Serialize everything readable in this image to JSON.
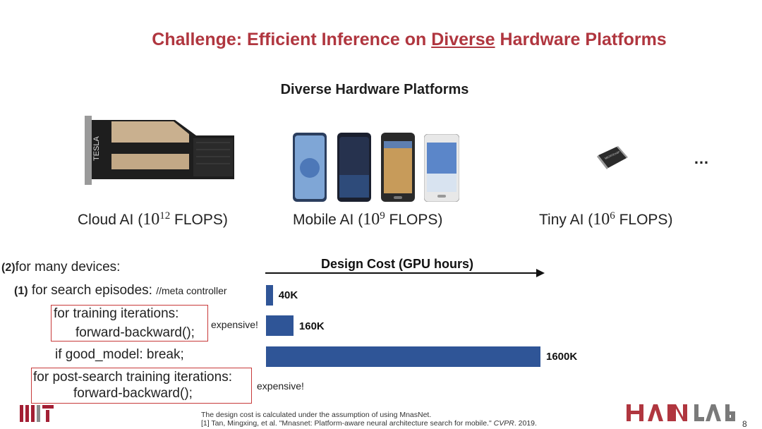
{
  "slide": {
    "title_pre": "Challenge: Efficient Inference on ",
    "title_underlined": "Diverse",
    "title_post": " Hardware Platforms",
    "subtitle": "Diverse Hardware Platforms",
    "ellipsis": "…",
    "page_number": "8"
  },
  "platforms": [
    {
      "name": "Cloud AI (",
      "base": "10",
      "exp": "12",
      "unit": " FLOPS)"
    },
    {
      "name": "Mobile AI (",
      "base": "10",
      "exp": "9",
      "unit": " FLOPS)"
    },
    {
      "name": "Tiny AI (",
      "base": "10",
      "exp": "6",
      "unit": " FLOPS)"
    }
  ],
  "gpu_logo_text": "TESLA",
  "chip_logo_text": "MICROCHIP",
  "code": {
    "line1_num": "(2)",
    "line1": "for many devices:",
    "line2_num": "(1)",
    "line2": "for search episodes:",
    "line2_comment": "//meta controller",
    "line3": "for training iterations:",
    "line4": "forward-backward();",
    "line5": "if good_model: break;",
    "line6": "for post-search training iterations:",
    "line7": "forward-backward();",
    "expensive1": "expensive!",
    "expensive2": "expensive!"
  },
  "chart_data": {
    "type": "bar",
    "title": "Design Cost (GPU hours)",
    "categories": [
      "search episodes",
      "training iterations",
      "post-search training"
    ],
    "values": [
      40,
      160,
      1600
    ],
    "labels": [
      "40K",
      "160K",
      "1600K"
    ],
    "unit": "K GPU hours"
  },
  "footnote": {
    "line1": "The design cost is calculated under the assumption of using MnasNet.",
    "line2_pre": "[1] Tan, Mingxing, et al. \"Mnasnet: Platform-aware neural architecture search for mobile.\" ",
    "line2_venue": "CVPR",
    "line2_post": ". 2019."
  },
  "logos": {
    "left": "MIT",
    "right": "HAN LAB"
  },
  "colors": {
    "title": "#b0363f",
    "bar": "#2f5597",
    "box": "#c83a3a"
  }
}
